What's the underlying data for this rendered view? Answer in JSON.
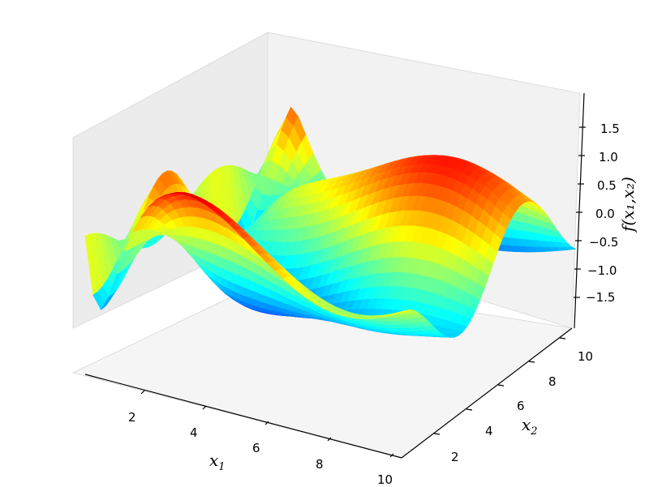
{
  "chart_data": {
    "type": "surface3d",
    "title": "",
    "xlabel": "x_1",
    "ylabel": "x_2",
    "zlabel": "f(x_1,x_2)",
    "x_ticks": [
      "2",
      "4",
      "6",
      "8",
      "10"
    ],
    "y_ticks": [
      "2",
      "4",
      "6",
      "8",
      "10"
    ],
    "z_ticks": [
      "1.5",
      "1.0",
      "0.5",
      "0.0",
      "−0.5",
      "−1.0",
      "−1.5"
    ],
    "xlim": [
      0,
      10
    ],
    "ylim": [
      0,
      10
    ],
    "zlim": [
      -2,
      2
    ],
    "colormap": "jet",
    "floor_contours": true,
    "grid": true,
    "description": "Oscillatory surface in x1, x2 with values from about -2 to 2, oscillation frequency decreasing with increasing x1; contour projection drawn on floor"
  },
  "labels": {
    "x_main": "x",
    "x_sub": "1",
    "y_main": "x",
    "y_sub": "2",
    "z_text": "f(x₁,x₂)"
  }
}
